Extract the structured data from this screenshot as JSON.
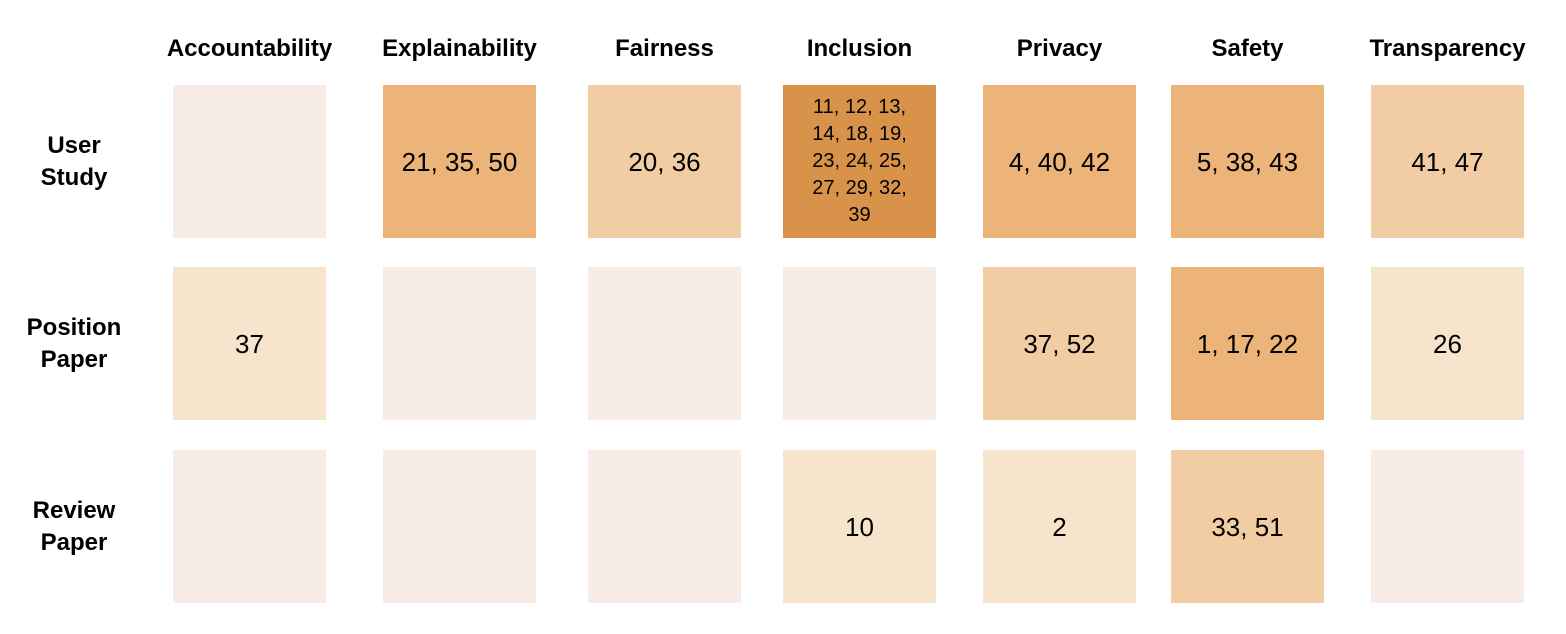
{
  "chart_data": {
    "type": "heatmap",
    "columns": [
      "Accountability",
      "Explainability",
      "Fairness",
      "Inclusion",
      "Privacy",
      "Safety",
      "Transparency"
    ],
    "rows": [
      [
        "User",
        "Study"
      ],
      [
        "Position",
        "Paper"
      ],
      [
        "Review",
        "Paper"
      ]
    ],
    "cells": [
      [
        {
          "label": "",
          "count": 0
        },
        {
          "label": "21, 35, 50",
          "count": 3
        },
        {
          "label": "20, 36",
          "count": 2
        },
        {
          "label": "11, 12, 13, 14, 18, 19, 23, 24, 25, 27, 29, 32, 39",
          "count": 13
        },
        {
          "label": "4, 40, 42",
          "count": 3
        },
        {
          "label": "5, 38, 43",
          "count": 3
        },
        {
          "label": "41, 47",
          "count": 2
        }
      ],
      [
        {
          "label": "37",
          "count": 1
        },
        {
          "label": "",
          "count": 0
        },
        {
          "label": "",
          "count": 0
        },
        {
          "label": "",
          "count": 0
        },
        {
          "label": "37, 52",
          "count": 2
        },
        {
          "label": "1, 17, 22",
          "count": 3
        },
        {
          "label": "26",
          "count": 1
        }
      ],
      [
        {
          "label": "",
          "count": 0
        },
        {
          "label": "",
          "count": 0
        },
        {
          "label": "",
          "count": 0
        },
        {
          "label": "10",
          "count": 1
        },
        {
          "label": "2",
          "count": 1
        },
        {
          "label": "33, 51",
          "count": 2
        },
        {
          "label": "",
          "count": 0
        }
      ]
    ],
    "color_scale": {
      "0": "#f7ede6",
      "1": "#f7e4cd",
      "2": "#f2cda3",
      "3": "#ecb478",
      "13": "#d9924a"
    },
    "legend": "none",
    "grid": false
  }
}
